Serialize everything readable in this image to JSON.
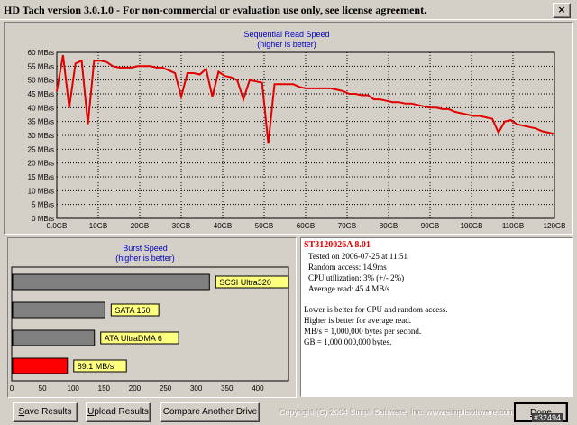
{
  "window": {
    "title": "HD Tach version 3.0.1.0  -  For non-commercial or evaluation use only, see license agreement.",
    "close_label": "×"
  },
  "colors": {
    "line": "#e00000",
    "bar_gray": "#808080",
    "bar_red": "#ff0000",
    "label_bg": "#ffff80",
    "title_blue": "#0000c0"
  },
  "sequential": {
    "title": "Sequential Read Speed",
    "subtitle": "(higher is better)",
    "y_ticks": [
      "0 MB/s",
      "5 MB/s",
      "10 MB/s",
      "15 MB/s",
      "20 MB/s",
      "25 MB/s",
      "30 MB/s",
      "35 MB/s",
      "40 MB/s",
      "45 MB/s",
      "50 MB/s",
      "55 MB/s",
      "60 MB/s"
    ],
    "x_ticks": [
      "0.0GB",
      "10GB",
      "20GB",
      "30GB",
      "40GB",
      "50GB",
      "60GB",
      "70GB",
      "80GB",
      "90GB",
      "100GB",
      "110GB",
      "120GB"
    ]
  },
  "burst": {
    "title": "Burst Speed",
    "subtitle": "(higher is better)",
    "x_ticks": [
      "0",
      "50",
      "100",
      "150",
      "200",
      "250",
      "300",
      "350",
      "400"
    ],
    "bars": [
      {
        "label": "SCSI Ultra320",
        "value": 320,
        "color": "gray"
      },
      {
        "label": "SATA 150",
        "value": 150,
        "color": "gray"
      },
      {
        "label": "ATA UltraDMA 6",
        "value": 133,
        "color": "gray"
      },
      {
        "label": "89.1 MB/s",
        "value": 89.1,
        "color": "red"
      }
    ]
  },
  "info": {
    "drive": "ST3120026A  8.01",
    "tested_on": "Tested on 2006-07-25 at 11:51",
    "random_access": "Random access: 14.9ms",
    "cpu": "CPU utilization: 3% (+/- 2%)",
    "average_read": "Average read: 45.4 MB/s",
    "note1": "Lower is better for CPU and random access.",
    "note2": "Higher is better for average read.",
    "note3": "MB/s = 1,000,000 bytes per second.",
    "note4": "GB = 1,000,000,000 bytes."
  },
  "buttons": {
    "save_prefix": "S",
    "save_rest": "ave Results",
    "upload_prefix": "U",
    "upload_rest": "pload Results",
    "compare_label": "Compare Another Drive",
    "done_prefix": "D",
    "done_rest": "one"
  },
  "footer": {
    "copyright": "Copyright (C) 2004 Simpli Software, Inc. www.simplisoftware.com",
    "badge": "#32494"
  },
  "chart_data": [
    {
      "type": "line",
      "title": "Sequential Read Speed",
      "subtitle": "(higher is better)",
      "xlabel": "",
      "ylabel": "",
      "xlim": [
        0,
        120
      ],
      "ylim": [
        0,
        60
      ],
      "grid": true,
      "series": [
        {
          "x": [
            0,
            1.5,
            3,
            4.5,
            6,
            7.5,
            9,
            10.5,
            12,
            13.5,
            15,
            16.5,
            18,
            19.5,
            21,
            22.5,
            24,
            25.5,
            27,
            28.5,
            30,
            31.5,
            33,
            34.5,
            36,
            37.5,
            39,
            40.5,
            42,
            43.5,
            45,
            46.5,
            48,
            49.5,
            51,
            52.5,
            54,
            55.5,
            57,
            58.5,
            60,
            61.5,
            63,
            64.5,
            66,
            67.5,
            69,
            70.5,
            72,
            73.5,
            75,
            76.5,
            78,
            79.5,
            81,
            82.5,
            84,
            85.5,
            87,
            88.5,
            90,
            91.5,
            93,
            94.5,
            96,
            97.5,
            99,
            100.5,
            102,
            103.5,
            105,
            106.5,
            108,
            109.5,
            111,
            112.5,
            114,
            115.5,
            117,
            118.5,
            120
          ],
          "y": [
            46,
            59,
            40,
            56,
            57,
            34,
            57,
            57,
            56.5,
            55,
            54.5,
            54.5,
            54.5,
            55,
            55,
            55,
            54.5,
            54.5,
            53.5,
            52.5,
            44,
            52.5,
            52.5,
            52,
            54,
            44,
            53,
            51.5,
            51,
            50,
            43,
            50,
            49.5,
            49,
            27,
            48.5,
            48.5,
            48.5,
            48.5,
            47.5,
            47,
            47,
            47,
            47,
            47,
            46.5,
            46,
            45,
            45,
            44.5,
            44.5,
            43,
            43,
            42.5,
            42,
            42,
            41.5,
            41.5,
            41,
            40.5,
            40,
            40,
            39.5,
            39.5,
            38.5,
            38,
            37.5,
            37,
            37,
            36.5,
            36,
            31,
            35,
            35.5,
            34,
            33.5,
            33,
            32.5,
            31.5,
            31,
            30.5
          ]
        }
      ]
    },
    {
      "type": "bar",
      "title": "Burst Speed",
      "subtitle": "(higher is better)",
      "categories": [
        "SCSI Ultra320",
        "SATA 150",
        "ATA UltraDMA 6",
        "89.1 MB/s"
      ],
      "values": [
        320,
        150,
        133,
        89.1
      ],
      "xlim": [
        0,
        450
      ]
    }
  ]
}
